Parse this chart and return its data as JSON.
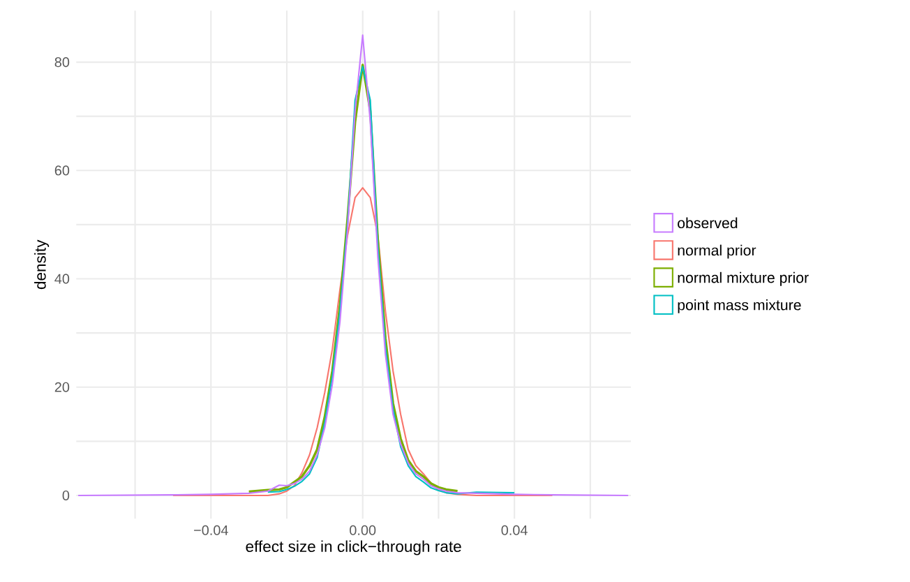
{
  "chart_data": {
    "type": "line",
    "xlabel": "effect size in click−through rate",
    "ylabel": "density",
    "x": [
      -0.075,
      -0.05,
      -0.04,
      -0.03,
      -0.025,
      -0.022,
      -0.02,
      -0.018,
      -0.016,
      -0.014,
      -0.012,
      -0.01,
      -0.008,
      -0.006,
      -0.004,
      -0.002,
      0,
      0.002,
      0.004,
      0.006,
      0.008,
      0.01,
      0.012,
      0.014,
      0.016,
      0.018,
      0.02,
      0.022,
      0.025,
      0.03,
      0.04,
      0.05,
      0.07
    ],
    "series": [
      {
        "name": "observed",
        "color": "#c77cff",
        "values": [
          0,
          0.1,
          0.2,
          0.4,
          0.8,
          1.9,
          1.8,
          2.2,
          3,
          4.5,
          7.5,
          12.5,
          20.5,
          32,
          49,
          71,
          85,
          69,
          44,
          26,
          15,
          9.5,
          6,
          4,
          3,
          1.8,
          1.2,
          0.8,
          0.5,
          0.4,
          0.2,
          0.1,
          0
        ]
      },
      {
        "name": "normal prior",
        "color": "#f8766d",
        "values": [
          null,
          0,
          0,
          0,
          0,
          0.3,
          0.8,
          1.8,
          4.2,
          7.5,
          12.5,
          19,
          27,
          38,
          48,
          55,
          56.8,
          55,
          48,
          34,
          23,
          15,
          8.5,
          5.5,
          4,
          2.3,
          1,
          0.5,
          0.2,
          0,
          0,
          0,
          null
        ]
      },
      {
        "name": "normal mixture prior",
        "color": "#7cae00",
        "values": [
          null,
          null,
          null,
          0.7,
          1,
          1.1,
          1.5,
          2.5,
          3.5,
          5.5,
          8.5,
          14.5,
          23,
          35,
          51,
          69,
          79.5,
          71,
          47,
          29,
          17,
          10.5,
          6.5,
          4.5,
          3.5,
          2.2,
          1.5,
          1.1,
          0.8,
          null,
          null,
          null,
          null
        ]
      },
      {
        "name": "point mass mixture",
        "color": "#00bfc4",
        "values": [
          null,
          null,
          null,
          null,
          0.6,
          0.7,
          1.1,
          1.7,
          2.6,
          4,
          7,
          13.5,
          22,
          34,
          50,
          73,
          79.2,
          73,
          46,
          27.5,
          16,
          9,
          5.5,
          3.5,
          2.5,
          1.4,
          0.9,
          0.5,
          0.3,
          0.6,
          0.5,
          null,
          null
        ]
      }
    ],
    "xlim": [
      -0.0755,
      0.0707
    ],
    "ylim": [
      -4.3,
      89.5
    ],
    "xticks": [
      {
        "value": -0.06,
        "label": null
      },
      {
        "value": -0.04,
        "label": "−0.04"
      },
      {
        "value": -0.02,
        "label": null
      },
      {
        "value": 0,
        "label": "0.00"
      },
      {
        "value": 0.02,
        "label": null
      },
      {
        "value": 0.04,
        "label": "0.04"
      },
      {
        "value": 0.06,
        "label": null
      }
    ],
    "yticks": [
      0,
      {
        "value": 10,
        "label": null
      },
      20,
      {
        "value": 30,
        "label": null
      },
      40,
      {
        "value": 50,
        "label": null
      },
      60,
      {
        "value": 70,
        "label": null
      },
      80
    ],
    "grid": true,
    "legend": "right",
    "marker": "none",
    "line_style": "solid"
  }
}
